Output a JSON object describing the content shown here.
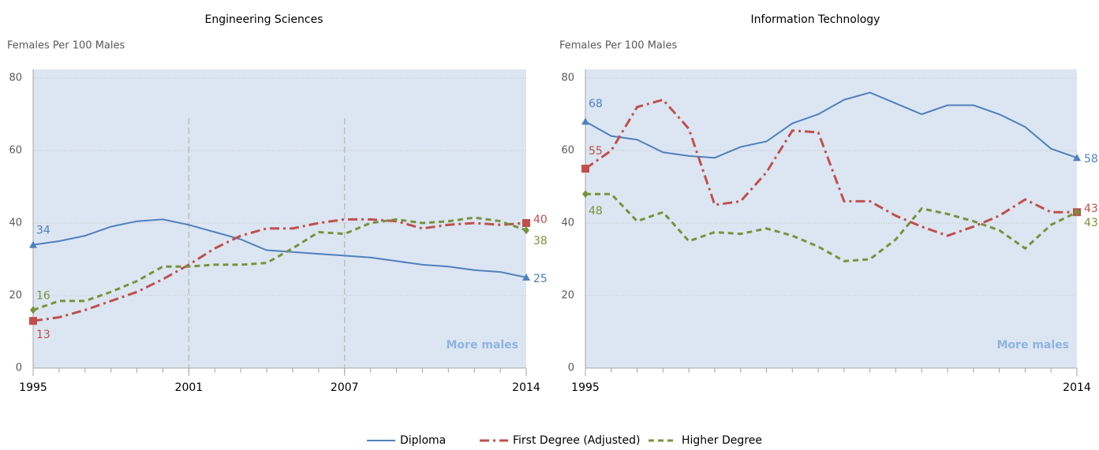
{
  "chart_data": [
    {
      "type": "line",
      "title": "Engineering Sciences",
      "y_label": "Females Per 100 Males",
      "annotation": "More males",
      "x": [
        1995,
        1996,
        1997,
        1998,
        1999,
        2000,
        2001,
        2002,
        2003,
        2004,
        2005,
        2006,
        2007,
        2008,
        2009,
        2010,
        2011,
        2012,
        2013,
        2014
      ],
      "xlim": [
        1995,
        2014
      ],
      "xticks": [
        1995,
        2001,
        2007,
        2014
      ],
      "vlines": [
        2001,
        2007
      ],
      "ylim": [
        0,
        80
      ],
      "yticks": [
        0,
        20,
        40,
        60,
        80
      ],
      "grid": true,
      "series": [
        {
          "name": "Diploma",
          "color": "#4f81bd",
          "dash": "solid",
          "marker": "triangle",
          "values": [
            34,
            35,
            36.5,
            39,
            40.5,
            41,
            39.5,
            37.5,
            35.5,
            32.5,
            32,
            31.5,
            31,
            30.5,
            29.5,
            28.5,
            28,
            27,
            26.5,
            25
          ]
        },
        {
          "name": "First Degree (Adjusted)",
          "color": "#c0504d",
          "dash": "dashdot",
          "marker": "square",
          "values": [
            13,
            14,
            16,
            18.5,
            21,
            24.5,
            28.5,
            33,
            36.5,
            38.5,
            38.5,
            40,
            41,
            41,
            40.5,
            38.5,
            39.5,
            40,
            39.5,
            40
          ]
        },
        {
          "name": "Higher Degree",
          "color": "#77933c",
          "dash": "dash",
          "marker": "diamond",
          "values": [
            16,
            18.5,
            18.5,
            21,
            24,
            28,
            28,
            28.5,
            28.5,
            29,
            33,
            37.5,
            37,
            40,
            41,
            40,
            40.5,
            41.5,
            40.5,
            38
          ]
        }
      ]
    },
    {
      "type": "line",
      "title": "Information Technology",
      "y_label": "Females Per 100 Males",
      "annotation": "More males",
      "x": [
        1995,
        1996,
        1997,
        1998,
        1999,
        2000,
        2001,
        2002,
        2003,
        2004,
        2005,
        2006,
        2007,
        2008,
        2009,
        2010,
        2011,
        2012,
        2013,
        2014
      ],
      "xlim": [
        1995,
        2014
      ],
      "xticks": [
        1995,
        2014
      ],
      "ylim": [
        0,
        80
      ],
      "yticks": [
        0,
        20,
        40,
        60,
        80
      ],
      "grid": true,
      "series": [
        {
          "color": "#4f81bd",
          "dash": "solid",
          "marker": "triangle",
          "values": [
            68,
            64,
            63,
            59.5,
            58.5,
            58,
            61,
            62.5,
            67.5,
            70,
            74,
            76,
            73,
            70,
            72.5,
            72.5,
            70,
            66.5,
            60.5,
            58
          ]
        },
        {
          "color": "#c0504d",
          "dash": "dashdot",
          "marker": "square",
          "values": [
            55,
            60,
            72,
            74,
            66,
            45,
            46,
            54,
            65.5,
            65,
            46,
            46,
            42,
            39,
            36.5,
            39,
            42,
            46.5,
            43,
            43
          ]
        },
        {
          "color": "#77933c",
          "dash": "dash",
          "marker": "diamond",
          "values": [
            48,
            48,
            40.5,
            43,
            35,
            37.5,
            37,
            38.5,
            36.5,
            33.5,
            29.5,
            30,
            35.5,
            44,
            42.5,
            40.5,
            38,
            33,
            39.5,
            43
          ]
        }
      ]
    }
  ]
}
